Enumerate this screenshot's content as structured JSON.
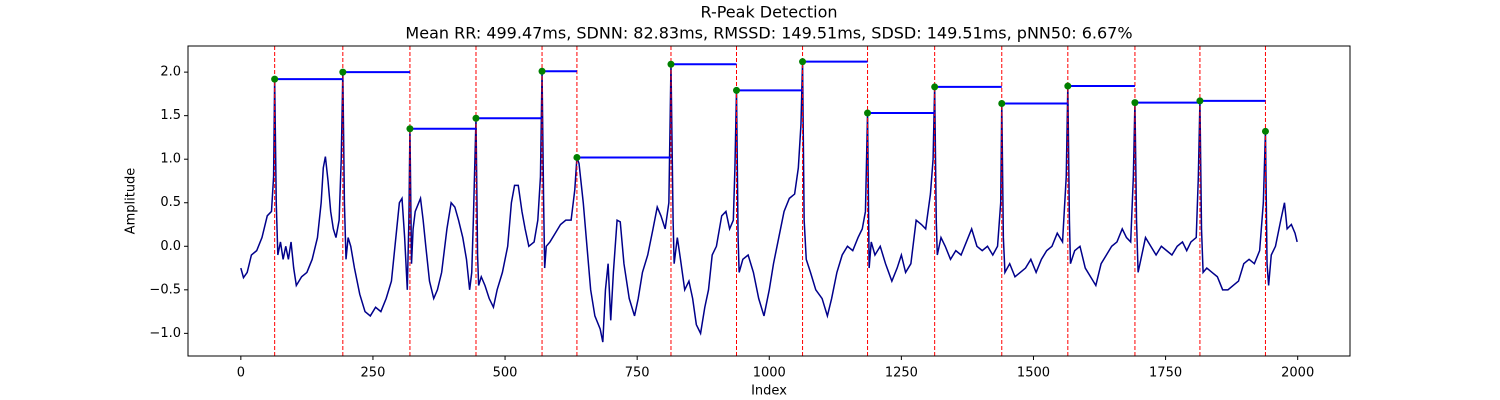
{
  "chart_data": {
    "type": "line",
    "title": "R-Peak Detection",
    "subtitle": "Mean RR: 499.47ms, SDNN: 82.83ms, RMSSD: 149.51ms, SDSD: 149.51ms, pNN50: 6.67%",
    "xlabel": "Index",
    "ylabel": "Amplitude",
    "xlim": [
      -100,
      2099
    ],
    "ylim": [
      -1.26,
      2.3
    ],
    "xticks": [
      0,
      250,
      500,
      750,
      1000,
      1250,
      1500,
      1750,
      2000
    ],
    "yticks": [
      {
        "value": -1,
        "label": "−1.0"
      },
      {
        "value": -0.5,
        "label": "−0.5"
      },
      {
        "value": 0,
        "label": "0.0"
      },
      0.5,
      {
        "value": 1,
        "label": "1.0"
      },
      1.5,
      {
        "value": 2,
        "label": "2.0"
      }
    ],
    "signal": {
      "color": "#00008b",
      "x": [
        0,
        5,
        12,
        20,
        30,
        40,
        50,
        58,
        62,
        64,
        67,
        70,
        75,
        80,
        85,
        90,
        95,
        100,
        105,
        115,
        125,
        135,
        145,
        152,
        156,
        160,
        165,
        170,
        175,
        180,
        186,
        190,
        193,
        196,
        199,
        203,
        208,
        215,
        225,
        235,
        245,
        255,
        265,
        275,
        285,
        295,
        300,
        305,
        310,
        315,
        318,
        320,
        323,
        326,
        330,
        340,
        345,
        350,
        357,
        365,
        372,
        380,
        390,
        398,
        405,
        412,
        420,
        427,
        433,
        437,
        440,
        445,
        448,
        450,
        455,
        462,
        470,
        478,
        485,
        495,
        505,
        512,
        518,
        525,
        532,
        538,
        545,
        555,
        562,
        567,
        570,
        573,
        575,
        578,
        585,
        595,
        605,
        615,
        625,
        632,
        636,
        640,
        648,
        655,
        662,
        670,
        680,
        685,
        690,
        695,
        700,
        705,
        712,
        718,
        725,
        735,
        745,
        752,
        760,
        770,
        780,
        788,
        795,
        803,
        810,
        814,
        818,
        820,
        826,
        832,
        840,
        848,
        855,
        862,
        870,
        878,
        885,
        892,
        900,
        910,
        918,
        925,
        932,
        935,
        938,
        941,
        943,
        950,
        960,
        970,
        980,
        990,
        1000,
        1008,
        1018,
        1028,
        1038,
        1048,
        1055,
        1060,
        1063,
        1066,
        1070,
        1078,
        1088,
        1100,
        1110,
        1118,
        1128,
        1138,
        1148,
        1158,
        1168,
        1176,
        1182,
        1186,
        1189,
        1193,
        1200,
        1210,
        1220,
        1232,
        1242,
        1250,
        1258,
        1268,
        1278,
        1288,
        1296,
        1305,
        1310,
        1313,
        1316,
        1318,
        1325,
        1333,
        1343,
        1353,
        1363,
        1373,
        1383,
        1393,
        1403,
        1413,
        1423,
        1432,
        1438,
        1440,
        1443,
        1446,
        1455,
        1465,
        1475,
        1485,
        1495,
        1505,
        1515,
        1525,
        1535,
        1545,
        1555,
        1562,
        1565,
        1568,
        1570,
        1578,
        1588,
        1598,
        1608,
        1618,
        1628,
        1638,
        1648,
        1658,
        1668,
        1676,
        1684,
        1689,
        1692,
        1695,
        1698,
        1705,
        1712,
        1722,
        1732,
        1742,
        1752,
        1762,
        1772,
        1782,
        1790,
        1798,
        1808,
        1812,
        1815,
        1818,
        1821,
        1828,
        1838,
        1848,
        1858,
        1868,
        1878,
        1888,
        1898,
        1908,
        1918,
        1928,
        1935,
        1939,
        1942,
        1945,
        1950,
        1958,
        1968,
        1975,
        1980,
        1988,
        1995,
        1999
      ],
      "values": [
        -0.25,
        -0.36,
        -0.3,
        -0.1,
        -0.05,
        0.1,
        0.35,
        0.4,
        0.8,
        1.92,
        0.5,
        -0.1,
        0.05,
        -0.15,
        0.0,
        -0.15,
        0.05,
        -0.25,
        -0.45,
        -0.35,
        -0.3,
        -0.15,
        0.1,
        0.5,
        0.9,
        1.03,
        0.75,
        0.4,
        0.2,
        0.1,
        0.3,
        1.0,
        2.0,
        0.5,
        -0.15,
        0.1,
        0.0,
        -0.25,
        -0.55,
        -0.75,
        -0.8,
        -0.7,
        -0.75,
        -0.6,
        -0.4,
        0.2,
        0.5,
        0.55,
        0.1,
        -0.5,
        0.3,
        1.35,
        -0.2,
        0.2,
        0.4,
        0.55,
        0.3,
        0.0,
        -0.4,
        -0.6,
        -0.5,
        -0.3,
        0.2,
        0.5,
        0.45,
        0.3,
        0.1,
        -0.15,
        -0.5,
        -0.3,
        0.3,
        1.47,
        -0.1,
        -0.45,
        -0.35,
        -0.45,
        -0.6,
        -0.7,
        -0.5,
        -0.3,
        0.0,
        0.5,
        0.7,
        0.7,
        0.4,
        0.2,
        0.0,
        0.05,
        0.3,
        0.8,
        2.01,
        0.5,
        -0.25,
        0.0,
        0.05,
        0.15,
        0.25,
        0.3,
        0.3,
        0.65,
        1.02,
        0.95,
        0.5,
        0.0,
        -0.5,
        -0.8,
        -0.95,
        -1.1,
        -0.5,
        -0.2,
        -0.85,
        -0.3,
        0.3,
        0.28,
        -0.2,
        -0.6,
        -0.8,
        -0.6,
        -0.3,
        -0.1,
        0.2,
        0.45,
        0.35,
        0.2,
        0.5,
        2.09,
        0.3,
        -0.2,
        0.1,
        -0.15,
        -0.5,
        -0.4,
        -0.6,
        -0.9,
        -1.0,
        -0.7,
        -0.5,
        -0.1,
        0.0,
        0.35,
        0.4,
        0.2,
        0.3,
        0.9,
        1.79,
        0.1,
        -0.3,
        -0.15,
        -0.1,
        -0.3,
        -0.6,
        -0.8,
        -0.5,
        -0.2,
        0.1,
        0.4,
        0.55,
        0.6,
        0.9,
        1.4,
        2.12,
        0.3,
        -0.15,
        -0.3,
        -0.5,
        -0.6,
        -0.8,
        -0.6,
        -0.3,
        -0.1,
        0.0,
        -0.05,
        0.1,
        0.2,
        0.4,
        1.53,
        -0.25,
        0.05,
        -0.1,
        0.0,
        -0.2,
        -0.4,
        -0.25,
        -0.1,
        -0.3,
        -0.2,
        0.3,
        0.25,
        0.2,
        0.6,
        1.0,
        1.83,
        0.3,
        -0.1,
        0.1,
        0.0,
        -0.15,
        -0.05,
        -0.1,
        0.05,
        0.2,
        0.0,
        -0.05,
        0.0,
        -0.1,
        0.0,
        0.5,
        1.64,
        0.1,
        -0.3,
        -0.2,
        -0.35,
        -0.3,
        -0.25,
        -0.15,
        -0.3,
        -0.15,
        -0.05,
        0.0,
        0.15,
        0.05,
        0.8,
        1.84,
        0.3,
        -0.2,
        -0.05,
        0.0,
        -0.25,
        -0.35,
        -0.45,
        -0.2,
        -0.1,
        0.0,
        0.05,
        0.2,
        0.1,
        0.05,
        0.8,
        1.65,
        0.3,
        -0.3,
        -0.1,
        0.1,
        0.0,
        -0.1,
        0.0,
        -0.05,
        -0.1,
        0.0,
        0.05,
        -0.05,
        0.05,
        0.1,
        0.8,
        1.67,
        0.2,
        -0.3,
        -0.25,
        -0.3,
        -0.35,
        -0.5,
        -0.5,
        -0.45,
        -0.4,
        -0.2,
        -0.15,
        -0.2,
        -0.05,
        0.5,
        1.32,
        -0.2,
        -0.45,
        -0.1,
        0.0,
        0.3,
        0.5,
        0.2,
        0.25,
        0.15,
        0.05
      ]
    },
    "peaks": {
      "color": "green",
      "line_color": "red",
      "interval_color": "blue",
      "x": [
        64,
        193,
        320,
        445,
        570,
        636,
        814,
        938,
        1063,
        1186,
        1313,
        1440,
        1565,
        1692,
        1815,
        1939
      ],
      "values": [
        1.92,
        2.0,
        1.35,
        1.47,
        2.01,
        1.02,
        2.09,
        1.79,
        2.12,
        1.53,
        1.83,
        1.64,
        1.84,
        1.65,
        1.67,
        1.32
      ]
    }
  }
}
